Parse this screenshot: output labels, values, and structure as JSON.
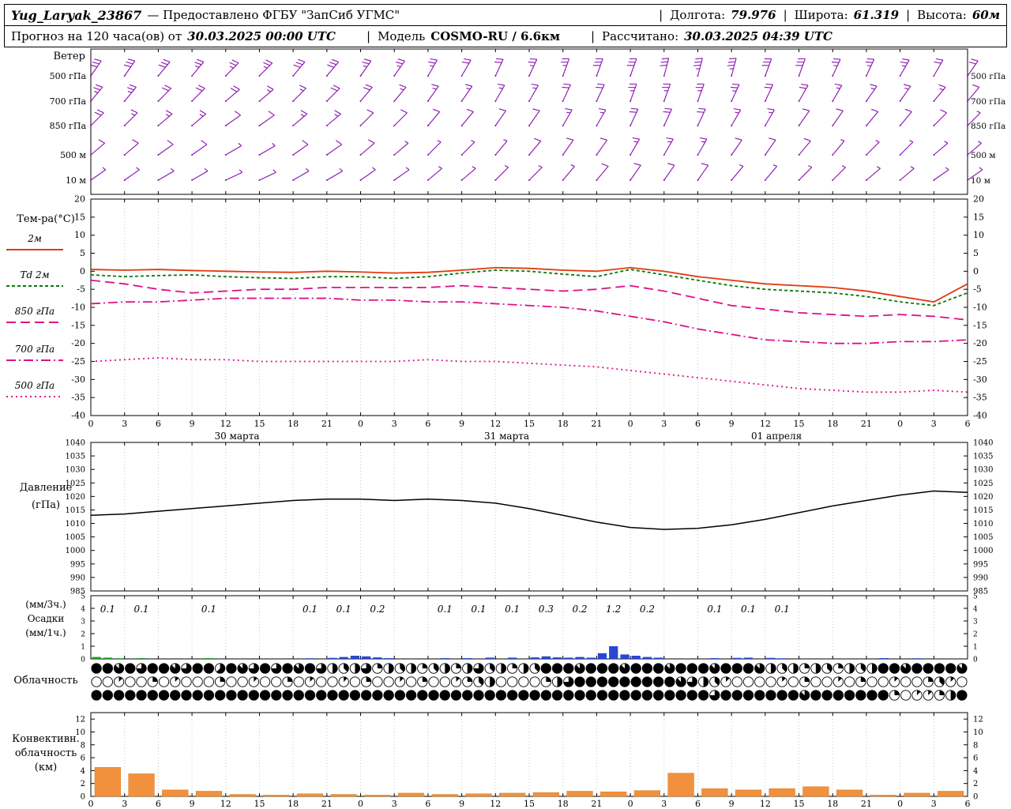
{
  "header1": {
    "station": "Yug_Laryak_23867",
    "provided": "— Предоставлено ФГБУ \"ЗапСиб УГМС\"",
    "sep": "|",
    "lon_label": "Долгота:",
    "lon": "79.976",
    "lat_label": "Широта:",
    "lat": "61.319",
    "alt_label": "Высота:",
    "alt": "60м"
  },
  "header2": {
    "forecast_label": "Прогноз на 120 часа(ов) от",
    "init_time": "30.03.2025 00:00 UTC",
    "sep": "|",
    "model_label": "Модель",
    "model": "COSMO-RU / 6.6км",
    "calc_label": "Рассчитано:",
    "calc_time": "30.03.2025 04:39 UTC"
  },
  "panels": {
    "wind_title": "Ветер",
    "temp_title": "Тем-ра(°C)",
    "pressure_label1": "Давление",
    "pressure_label2": "(гПа)",
    "precip_label1": "(мм/3ч.)",
    "precip_label2": "Осадки",
    "precip_label3": "(мм/1ч.)",
    "cloud_label": "Облачность",
    "conv_label1": "Конвективн.",
    "conv_label2": "облачность",
    "conv_label3": "(км)"
  },
  "chart_data": {
    "type": "meteogram",
    "time": {
      "start_hour": 0,
      "end_hour": 78,
      "tick_step_hours": 3,
      "hour_tick_labels": [
        "0",
        "3",
        "6",
        "9",
        "12",
        "15",
        "18",
        "21",
        "0",
        "3",
        "6",
        "9",
        "12",
        "15",
        "18",
        "21",
        "0",
        "3",
        "6",
        "9",
        "12",
        "15",
        "18",
        "21",
        "0",
        "3",
        "6"
      ],
      "date_labels": [
        {
          "label": "30 марта",
          "hour": 13
        },
        {
          "label": "31 марта",
          "hour": 37
        },
        {
          "label": "01 апреля",
          "hour": 61
        }
      ]
    },
    "wind": {
      "color": "#8a12b0",
      "levels": [
        {
          "name": "500 гПа",
          "speeds_kt": [
            30,
            30,
            30,
            25,
            25,
            25,
            30,
            30,
            25,
            25,
            25,
            20,
            20,
            25,
            25,
            30,
            30,
            30,
            35,
            35,
            30,
            30,
            25,
            25,
            25,
            20,
            20
          ],
          "dirs_deg": [
            35,
            35,
            40,
            40,
            45,
            45,
            40,
            40,
            35,
            35,
            30,
            30,
            25,
            25,
            20,
            20,
            20,
            15,
            15,
            15,
            20,
            20,
            25,
            25,
            30,
            30,
            35
          ]
        },
        {
          "name": "700 гПа",
          "speeds_kt": [
            25,
            25,
            20,
            20,
            20,
            15,
            15,
            20,
            20,
            15,
            15,
            15,
            15,
            15,
            20,
            20,
            25,
            25,
            25,
            25,
            20,
            20,
            15,
            15,
            15,
            15,
            10
          ],
          "dirs_deg": [
            40,
            40,
            45,
            45,
            50,
            50,
            45,
            45,
            40,
            40,
            35,
            35,
            30,
            30,
            25,
            25,
            20,
            20,
            20,
            25,
            25,
            30,
            30,
            35,
            35,
            40,
            40
          ]
        },
        {
          "name": "850 гПа",
          "speeds_kt": [
            20,
            15,
            15,
            15,
            10,
            10,
            15,
            15,
            10,
            10,
            10,
            10,
            10,
            10,
            15,
            15,
            20,
            20,
            20,
            15,
            15,
            10,
            10,
            10,
            10,
            10,
            5
          ],
          "dirs_deg": [
            45,
            45,
            50,
            50,
            55,
            55,
            50,
            50,
            45,
            45,
            40,
            40,
            35,
            35,
            30,
            30,
            25,
            25,
            25,
            30,
            30,
            35,
            35,
            40,
            40,
            45,
            45
          ]
        },
        {
          "name": "500 м",
          "speeds_kt": [
            10,
            10,
            10,
            10,
            5,
            5,
            10,
            10,
            10,
            5,
            5,
            5,
            5,
            10,
            10,
            10,
            15,
            15,
            15,
            10,
            10,
            10,
            5,
            5,
            5,
            5,
            5
          ],
          "dirs_deg": [
            50,
            50,
            55,
            55,
            60,
            60,
            55,
            55,
            50,
            50,
            45,
            45,
            40,
            40,
            35,
            35,
            30,
            30,
            30,
            35,
            35,
            40,
            40,
            45,
            45,
            50,
            50
          ]
        },
        {
          "name": "10 м",
          "speeds_kt": [
            5,
            5,
            5,
            5,
            5,
            5,
            5,
            5,
            5,
            5,
            5,
            5,
            5,
            5,
            5,
            10,
            10,
            10,
            10,
            5,
            5,
            5,
            5,
            5,
            5,
            5,
            5
          ],
          "dirs_deg": [
            55,
            55,
            60,
            60,
            65,
            65,
            60,
            60,
            55,
            55,
            50,
            50,
            45,
            45,
            40,
            40,
            35,
            35,
            35,
            40,
            40,
            45,
            45,
            50,
            50,
            55,
            55
          ]
        }
      ]
    },
    "temperature": {
      "ylim": [
        -40,
        20
      ],
      "yticks": [
        20,
        15,
        10,
        5,
        0,
        -5,
        -10,
        -15,
        -20,
        -25,
        -30,
        -35,
        -40
      ],
      "series": [
        {
          "name": "2м",
          "color": "#e03a10",
          "dash": "",
          "values": [
            0.5,
            0.3,
            0.5,
            0.2,
            0,
            -0.2,
            -0.3,
            0,
            -0.2,
            -0.5,
            -0.3,
            0.3,
            1,
            0.8,
            0.3,
            0,
            1,
            0,
            -1.5,
            -2.5,
            -3.5,
            -4,
            -4.5,
            -5.5,
            -7,
            -8.5,
            -3.5
          ]
        },
        {
          "name": "Td 2м",
          "color": "#0a7a0a",
          "dash": "4,3",
          "values": [
            -1,
            -1.5,
            -1.2,
            -1,
            -1.5,
            -1.8,
            -2,
            -1.5,
            -1.5,
            -2,
            -1.5,
            -0.5,
            0.3,
            0,
            -0.8,
            -1.5,
            0.5,
            -1,
            -2.5,
            -4,
            -5,
            -5.5,
            -6,
            -7,
            -8.5,
            -9.5,
            -6
          ]
        },
        {
          "name": "850 гПа",
          "color": "#dd1188",
          "dash": "12,6",
          "values": [
            -2.5,
            -3.5,
            -5,
            -6,
            -5.5,
            -5,
            -5,
            -4.5,
            -4.5,
            -4.5,
            -4.5,
            -4,
            -4.5,
            -5,
            -5.5,
            -5,
            -4,
            -5.5,
            -7.5,
            -9.5,
            -10.5,
            -11.5,
            -12,
            -12.5,
            -12,
            -12.5,
            -13.5
          ]
        },
        {
          "name": "700 гПа",
          "color": "#dd1188",
          "dash": "12,4,2,4",
          "values": [
            -9,
            -8.5,
            -8.5,
            -8,
            -7.5,
            -7.5,
            -7.5,
            -7.5,
            -8,
            -8,
            -8.5,
            -8.5,
            -9,
            -9.5,
            -10,
            -11,
            -12.5,
            -14,
            -16,
            -17.5,
            -19,
            -19.5,
            -20,
            -20,
            -19.5,
            -19.5,
            -19
          ]
        },
        {
          "name": "500 гПа",
          "color": "#dd1188",
          "dash": "2,4",
          "values": [
            -25,
            -24.5,
            -24,
            -24.5,
            -24.5,
            -25,
            -25,
            -25,
            -25,
            -25,
            -24.5,
            -25,
            -25,
            -25.5,
            -26,
            -26.5,
            -27.5,
            -28.5,
            -29.5,
            -30.5,
            -31.5,
            -32.5,
            -33,
            -33.5,
            -33.5,
            -33,
            -33.5
          ]
        }
      ]
    },
    "pressure": {
      "ylim": [
        985,
        1040
      ],
      "yticks": [
        1040,
        1035,
        1030,
        1025,
        1020,
        1015,
        1010,
        1005,
        1000,
        995,
        990,
        985
      ],
      "color": "#000000",
      "values": [
        1013,
        1013.5,
        1014.5,
        1015.5,
        1016.5,
        1017.5,
        1018.5,
        1019,
        1019,
        1018.5,
        1019,
        1018.5,
        1017.5,
        1015.5,
        1013,
        1010.5,
        1008.5,
        1007.8,
        1008.2,
        1009.5,
        1011.5,
        1014,
        1016.5,
        1018.5,
        1020.5,
        1022,
        1021.5
      ]
    },
    "precipitation": {
      "ylim": [
        0,
        5
      ],
      "yticks": [
        5,
        4,
        3,
        2,
        1,
        0
      ],
      "sums_3h": [
        0.1,
        0.1,
        0,
        0.1,
        0,
        0,
        0.1,
        0.1,
        0.2,
        0,
        0.1,
        0.1,
        0.1,
        0.3,
        0.2,
        1.2,
        0.2,
        0,
        0.1,
        0.1,
        0.1,
        0,
        0,
        0,
        0,
        0
      ],
      "colors": {
        "g": "#18a018",
        "b": "#2846d2"
      },
      "hourly_bars": [
        [
          0,
          0.15,
          "g"
        ],
        [
          1,
          0.1,
          "g"
        ],
        [
          2,
          0.05,
          "g"
        ],
        [
          4,
          0.06,
          "g"
        ],
        [
          10,
          0.06,
          "g"
        ],
        [
          19,
          0.05,
          "b"
        ],
        [
          21,
          0.08,
          "b"
        ],
        [
          22,
          0.15,
          "b"
        ],
        [
          23,
          0.25,
          "b"
        ],
        [
          24,
          0.2,
          "b"
        ],
        [
          25,
          0.12,
          "b"
        ],
        [
          26,
          0.06,
          "b"
        ],
        [
          31,
          0.06,
          "b"
        ],
        [
          33,
          0.06,
          "b"
        ],
        [
          35,
          0.1,
          "b"
        ],
        [
          37,
          0.1,
          "b"
        ],
        [
          39,
          0.12,
          "b"
        ],
        [
          40,
          0.2,
          "b"
        ],
        [
          41,
          0.12,
          "b"
        ],
        [
          42,
          0.1,
          "b"
        ],
        [
          43,
          0.15,
          "b"
        ],
        [
          44,
          0.1,
          "b"
        ],
        [
          45,
          0.45,
          "b"
        ],
        [
          46,
          1.0,
          "b"
        ],
        [
          47,
          0.35,
          "b"
        ],
        [
          48,
          0.25,
          "b"
        ],
        [
          49,
          0.15,
          "b"
        ],
        [
          50,
          0.1,
          "b"
        ],
        [
          55,
          0.06,
          "b"
        ],
        [
          57,
          0.08,
          "b"
        ],
        [
          58,
          0.1,
          "b"
        ],
        [
          60,
          0.08,
          "b"
        ],
        [
          61,
          0.05,
          "b"
        ],
        [
          70,
          0.06,
          "b"
        ],
        [
          73,
          0.05,
          "b"
        ]
      ]
    },
    "cloudiness": {
      "rows_octas_hourly": [
        "887868876885876868786434624342342463424388878887888788878887434243243488788887",
        "001002010002001002010010200102001234000024688888888876431000010200102001002310",
        "888888888888888888888888888888888888888888888888888888868888888788888882011248"
      ]
    },
    "convective": {
      "ylim": [
        0,
        13
      ],
      "yticks": [
        12,
        10,
        8,
        6,
        4,
        2,
        0
      ],
      "color": "#f2913d",
      "values_km_3h": [
        4.5,
        3.5,
        1,
        0.8,
        0.3,
        0.2,
        0.4,
        0.3,
        0.2,
        0.5,
        0.3,
        0.4,
        0.5,
        0.6,
        0.8,
        0.7,
        0.9,
        3.6,
        1.2,
        1,
        1.2,
        1.5,
        1,
        0.2,
        0.5,
        0.8
      ]
    }
  }
}
